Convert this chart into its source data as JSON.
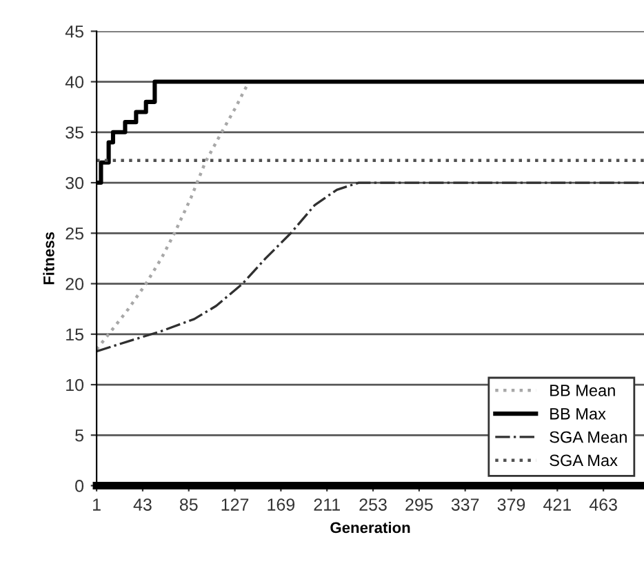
{
  "chart_data": {
    "type": "line",
    "xlabel": "Generation",
    "ylabel": "Fitness",
    "xlim": [
      1,
      500
    ],
    "ylim": [
      0,
      45
    ],
    "xticks": [
      1,
      43,
      85,
      127,
      169,
      211,
      253,
      295,
      337,
      379,
      421,
      463
    ],
    "yticks": [
      0,
      5,
      10,
      15,
      20,
      25,
      30,
      35,
      40,
      45
    ],
    "grid": "y",
    "legend": "lower right",
    "series": [
      {
        "name": "BB Mean",
        "color": "#a8a8a8",
        "line_style": "dotted",
        "x": [
          1,
          12,
          30,
          46,
          60,
          72,
          87,
          100,
          115,
          128,
          135,
          140
        ],
        "values": [
          13.5,
          15,
          17.5,
          20,
          22.5,
          25,
          28.5,
          32,
          35,
          37.5,
          39,
          40
        ]
      },
      {
        "name": "BB Max",
        "color": "#000000",
        "line_style": "solid",
        "type": "step",
        "x": [
          1,
          5,
          12,
          16,
          27,
          37,
          46,
          54,
          500
        ],
        "values": [
          30,
          32,
          34,
          35,
          36,
          37,
          38,
          40,
          40
        ]
      },
      {
        "name": "SGA Mean",
        "color": "#303030",
        "line_style": "dashdot",
        "x": [
          1,
          30,
          60,
          90,
          110,
          134,
          155,
          178,
          200,
          220,
          240,
          500
        ],
        "values": [
          13.3,
          14.3,
          15.3,
          16.5,
          17.8,
          20,
          22.5,
          25,
          27.8,
          29.3,
          30,
          30
        ]
      },
      {
        "name": "SGA Max",
        "color": "#505050",
        "line_style": "dotted",
        "x": [
          1,
          500
        ],
        "values": [
          32.2,
          32.2
        ]
      }
    ]
  }
}
